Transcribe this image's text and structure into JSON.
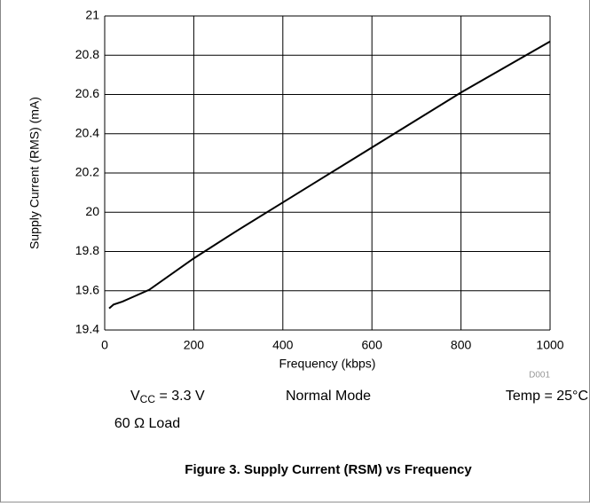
{
  "chart_data": {
    "type": "line",
    "ylabel": "Supply Current (RMS) (mA)",
    "xlabel": "Frequency (kbps)",
    "code": "D001",
    "conditions": {
      "vcc": {
        "symbol": "V",
        "subscript": "CC",
        "text": " = 3.3 V"
      },
      "load": "60 Ω Load",
      "mode": "Normal Mode",
      "temp": "Temp = 25°C"
    },
    "caption": "Figure 3. Supply Current (RSM) vs Frequency",
    "x": [
      10,
      20,
      40,
      60,
      100,
      200,
      300,
      400,
      500,
      600,
      700,
      800,
      900,
      1000
    ],
    "values": [
      19.51,
      19.53,
      19.545,
      19.565,
      19.605,
      19.765,
      19.91,
      20.05,
      20.19,
      20.33,
      20.47,
      20.61,
      20.74,
      20.87
    ],
    "color": "#000000",
    "xlim": [
      0,
      1000
    ],
    "xticks": [
      0,
      200,
      400,
      600,
      800,
      1000
    ],
    "ylim": [
      19.4,
      21
    ],
    "yticks": [
      19.4,
      19.6,
      19.8,
      20,
      20.2,
      20.4,
      20.6,
      20.8,
      21
    ],
    "grid": true
  }
}
